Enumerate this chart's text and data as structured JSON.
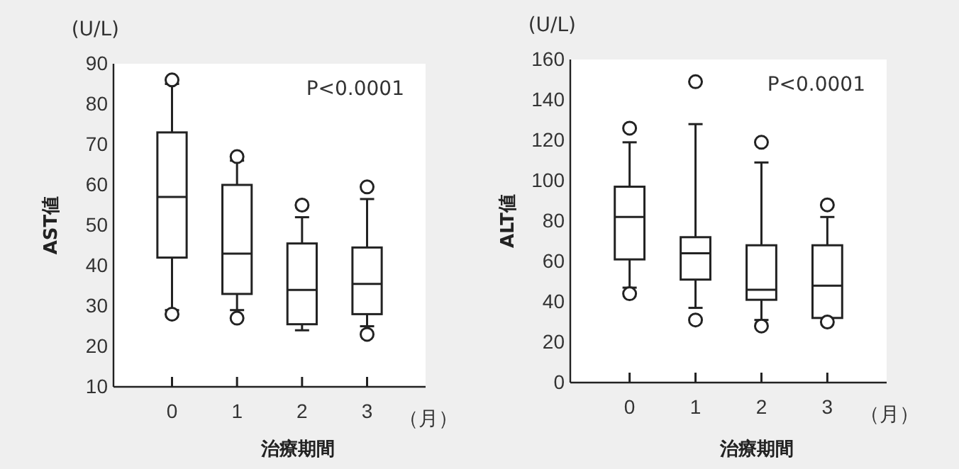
{
  "chart_data": [
    {
      "type": "box",
      "xlabel": "治療期間",
      "ylabel": "AST値",
      "categories": [
        "0",
        "1",
        "2",
        "3"
      ],
      "ylim": [
        10,
        90
      ],
      "yticks": [
        10,
        20,
        30,
        40,
        50,
        60,
        70,
        80,
        90
      ],
      "annotations": [
        "(U/L)",
        "P<0.0001",
        "（月）"
      ],
      "boxes": [
        {
          "low": 29,
          "q1": 42,
          "median": 57,
          "q3": 73,
          "high": 85,
          "outliers": [
            86,
            28
          ]
        },
        {
          "low": 29,
          "q1": 33,
          "median": 43,
          "q3": 60,
          "high": 66,
          "outliers": [
            67,
            27
          ]
        },
        {
          "low": 24,
          "q1": 25.5,
          "median": 34,
          "q3": 45.5,
          "high": 52,
          "outliers": [
            55
          ]
        },
        {
          "low": 25,
          "q1": 28,
          "median": 35.5,
          "q3": 44.5,
          "high": 56.5,
          "outliers": [
            59.5,
            23
          ]
        }
      ]
    },
    {
      "type": "box",
      "xlabel": "治療期間",
      "ylabel": "ALT値",
      "categories": [
        "0",
        "1",
        "2",
        "3"
      ],
      "ylim": [
        0,
        160
      ],
      "yticks": [
        0,
        20,
        40,
        60,
        80,
        100,
        120,
        140,
        160
      ],
      "annotations": [
        "(U/L)",
        "P<0.0001",
        "（月）"
      ],
      "boxes": [
        {
          "low": 47,
          "q1": 61,
          "median": 82,
          "q3": 97,
          "high": 119,
          "outliers": [
            126,
            44
          ]
        },
        {
          "low": 37,
          "q1": 51,
          "median": 64,
          "q3": 72,
          "high": 128,
          "outliers": [
            149,
            31
          ]
        },
        {
          "low": 31,
          "q1": 41,
          "median": 46,
          "q3": 68,
          "high": 109,
          "outliers": [
            119,
            28
          ]
        },
        {
          "low": 32,
          "q1": 32,
          "median": 48,
          "q3": 68,
          "high": 82,
          "outliers": [
            88,
            30
          ]
        }
      ]
    }
  ]
}
